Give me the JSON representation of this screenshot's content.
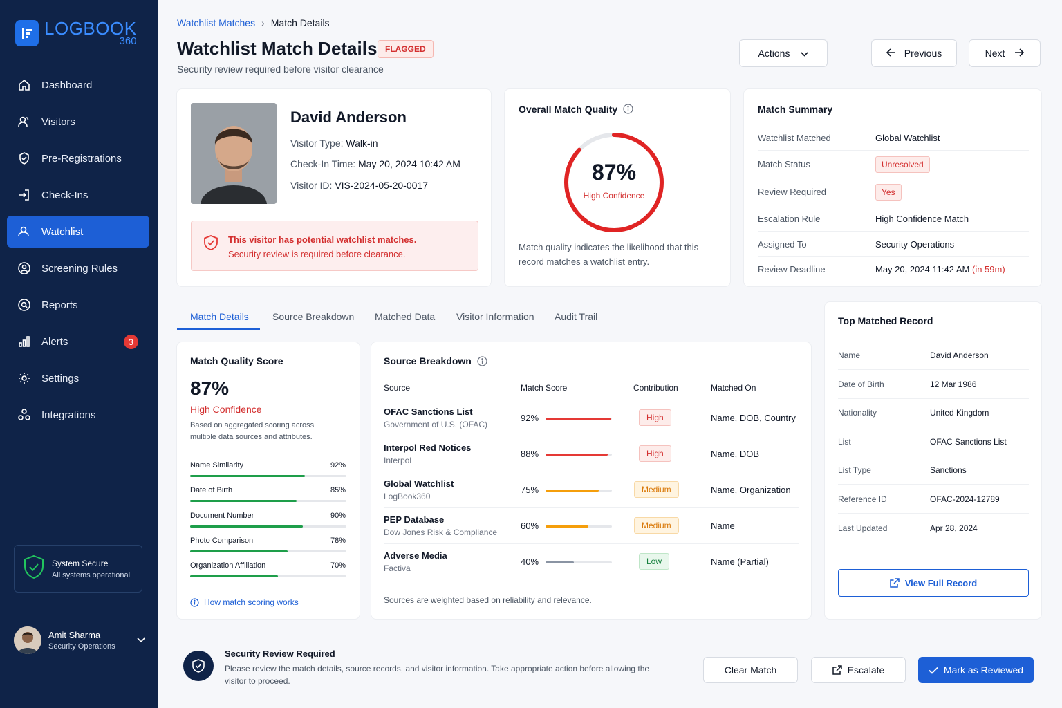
{
  "brand": {
    "name": "LOGBOOK",
    "sub": "360"
  },
  "sidebar": {
    "items": [
      {
        "label": "Dashboard"
      },
      {
        "label": "Visitors"
      },
      {
        "label": "Pre-Registrations"
      },
      {
        "label": "Check-Ins"
      },
      {
        "label": "Watchlist"
      },
      {
        "label": "Screening Rules"
      },
      {
        "label": "Reports"
      },
      {
        "label": "Alerts",
        "badge": "3"
      },
      {
        "label": "Settings"
      },
      {
        "label": "Integrations"
      }
    ],
    "status": {
      "title": "System Secure",
      "detail": "All systems operational"
    },
    "user": {
      "name": "Amit Sharma",
      "role": "Security Operations"
    }
  },
  "header": {
    "breadcrumb": {
      "parent": "Watchlist Matches",
      "current": "Match Details"
    },
    "title": "Watchlist Match Details",
    "flag": "FLAGGED",
    "subtitle": "Security review required before visitor clearance",
    "actions_label": "Actions",
    "previous_label": "Previous",
    "next_label": "Next"
  },
  "visitor": {
    "name": "David Anderson",
    "type_label": "Visitor Type:",
    "type": "Walk-in",
    "checkin_label": "Check-In Time:",
    "checkin": "May 20, 2024 10:42 AM",
    "id_label": "Visitor ID:",
    "id": "VIS-2024-05-20-0017",
    "alert_title": "This visitor has potential watchlist matches.",
    "alert_detail": "Security review is required before clearance."
  },
  "overall": {
    "title": "Overall Match Quality",
    "percent": "87%",
    "value": 0.87,
    "confidence": "High Confidence",
    "note_1": "Match quality indicates the likelihood that this",
    "note_2": "record matches a watchlist entry."
  },
  "summary": {
    "title": "Match Summary",
    "rows": [
      {
        "label": "Watchlist Matched",
        "value": "Global Watchlist"
      },
      {
        "label": "Match Status",
        "value": "Unresolved"
      },
      {
        "label": "Review Required",
        "value": "Yes"
      },
      {
        "label": "Escalation Rule",
        "value": "High Confidence Match"
      },
      {
        "label": "Assigned To",
        "value": "Security Operations"
      },
      {
        "label": "Review Deadline",
        "value": "May 20, 2024 11:42 AM",
        "extra": "(in 59m)"
      }
    ]
  },
  "tabs": [
    "Match Details",
    "Source Breakdown",
    "Matched Data",
    "Visitor Information",
    "Audit Trail"
  ],
  "quality": {
    "title": "Match Quality Score",
    "percent": "87%",
    "confidence": "High Confidence",
    "desc_1": "Based on aggregated scoring across",
    "desc_2": "multiple data sources and attributes.",
    "attributes": [
      {
        "label": "Name Similarity",
        "value": "92%",
        "fraction": 0.92
      },
      {
        "label": "Date of Birth",
        "value": "85%",
        "fraction": 0.85
      },
      {
        "label": "Document Number",
        "value": "90%",
        "fraction": 0.9
      },
      {
        "label": "Photo Comparison",
        "value": "78%",
        "fraction": 0.78
      },
      {
        "label": "Organization Affiliation",
        "value": "70%",
        "fraction": 0.7
      }
    ],
    "help_link": "How match scoring works"
  },
  "sources": {
    "title": "Source Breakdown",
    "headers": {
      "source": "Source",
      "score": "Match Score",
      "contribution": "Contribution",
      "matched_on": "Matched On"
    },
    "rows": [
      {
        "name": "OFAC Sanctions List",
        "sub": "Government of U.S. (OFAC)",
        "score": "92%",
        "fraction": 0.92,
        "contribution": "High",
        "matched_on": "Name, DOB, Country",
        "color": "#e53935"
      },
      {
        "name": "Interpol Red Notices",
        "sub": "Interpol",
        "score": "88%",
        "fraction": 0.88,
        "contribution": "High",
        "matched_on": "Name, DOB",
        "color": "#e53935"
      },
      {
        "name": "Global Watchlist",
        "sub": "LogBook360",
        "score": "75%",
        "fraction": 0.75,
        "contribution": "Medium",
        "matched_on": "Name, Organization",
        "color": "#f59e0b"
      },
      {
        "name": "PEP Database",
        "sub": "Dow Jones Risk & Compliance",
        "score": "60%",
        "fraction": 0.6,
        "contribution": "Medium",
        "matched_on": "Name",
        "color": "#f59e0b"
      },
      {
        "name": "Adverse Media",
        "sub": "Factiva",
        "score": "40%",
        "fraction": 0.4,
        "contribution": "Low",
        "matched_on": "Name (Partial)",
        "color": "#8a94a3"
      }
    ],
    "footnote": "Sources are weighted based on reliability and relevance."
  },
  "top_record": {
    "title": "Top Matched Record",
    "rows": [
      {
        "label": "Name",
        "value": "David Anderson"
      },
      {
        "label": "Date of Birth",
        "value": "12 Mar 1986"
      },
      {
        "label": "Nationality",
        "value": "United Kingdom"
      },
      {
        "label": "List",
        "value": "OFAC Sanctions List"
      },
      {
        "label": "List Type",
        "value": "Sanctions"
      },
      {
        "label": "Reference ID",
        "value": "OFAC-2024-12789"
      },
      {
        "label": "Last Updated",
        "value": "Apr 28, 2024"
      }
    ],
    "view_label": "View Full Record"
  },
  "footer": {
    "title": "Security Review Required",
    "text_1": "Please review the match details, source records, and visitor information. Take appropriate action before allowing the",
    "text_2": "visitor to proceed.",
    "clear_label": "Clear Match",
    "escalate_label": "Escalate",
    "review_label": "Mark as Reviewed"
  },
  "colors": {
    "primary": "#1d5fd6",
    "sidebar": "#0f2348",
    "danger": "#e53935",
    "success": "#1e9e4a",
    "warning": "#f59e0b"
  }
}
